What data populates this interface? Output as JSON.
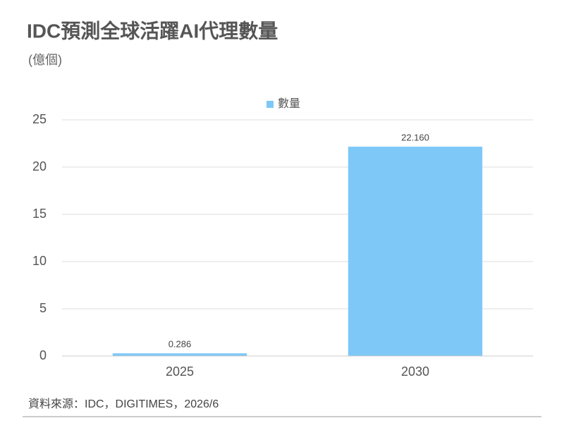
{
  "chart_data": {
    "type": "bar",
    "title": "IDC預測全球活躍AI代理數量",
    "subtitle": "(億個)",
    "categories": [
      "2025",
      "2030"
    ],
    "series": [
      {
        "name": "數量",
        "color": "#7ec8f8",
        "values": [
          0.286,
          22.16
        ],
        "value_labels": [
          "0.286",
          "22.160"
        ]
      }
    ],
    "ylim": [
      0,
      25
    ],
    "yticks": [
      0,
      5,
      10,
      15,
      20,
      25
    ],
    "grid": true,
    "legend": "top",
    "source": "資料來源：IDC，DIGITIMES，2026/6"
  }
}
